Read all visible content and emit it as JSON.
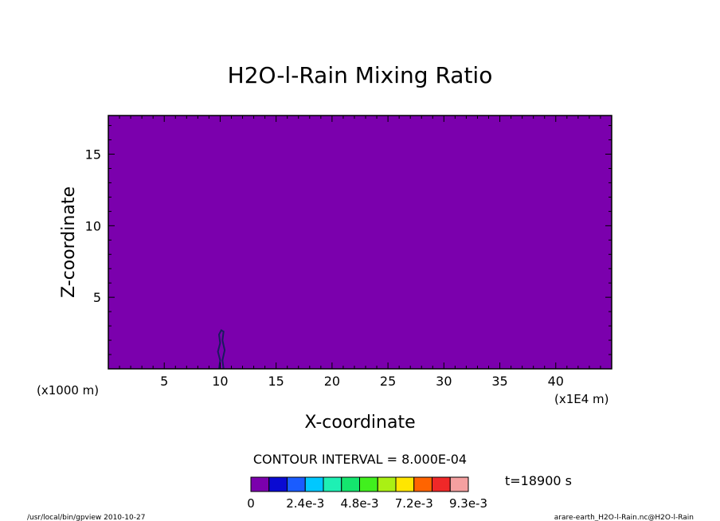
{
  "chart_data": {
    "type": "heatmap",
    "title": "H2O-l-Rain Mixing Ratio",
    "xlabel": "X-coordinate",
    "ylabel": "Z-coordinate",
    "x_unit_left": "(x1000 m)",
    "x_unit_right": "(x1E4 m)",
    "xlim": [
      0,
      45
    ],
    "ylim": [
      0,
      17.7
    ],
    "x_ticks": [
      5,
      10,
      15,
      20,
      25,
      30,
      35,
      40
    ],
    "y_ticks": [
      5,
      10,
      15
    ],
    "field_fill_color": "#7b00ad",
    "rain_contour": {
      "level": 0.0008,
      "color": "#1a1a5e",
      "points": [
        [
          9.9,
          0.0
        ],
        [
          10.0,
          0.6
        ],
        [
          9.8,
          1.2
        ],
        [
          10.0,
          1.8
        ],
        [
          9.9,
          2.4
        ],
        [
          10.1,
          2.7
        ],
        [
          10.3,
          2.6
        ],
        [
          10.2,
          2.0
        ],
        [
          10.4,
          1.3
        ],
        [
          10.2,
          0.6
        ],
        [
          10.3,
          0.0
        ]
      ]
    },
    "contour_interval_text": "CONTOUR INTERVAL = 8.000E-04",
    "time_text": "t=18900 s",
    "colorbar": {
      "colors": [
        "#7b00ad",
        "#0a0ad2",
        "#1a5cff",
        "#00c8ff",
        "#1ef0b4",
        "#14e66e",
        "#41f01e",
        "#aaf014",
        "#ffe600",
        "#ff6400",
        "#f02828",
        "#f5a0a0"
      ],
      "tick_labels": [
        "0",
        "2.4e-3",
        "4.8e-3",
        "7.2e-3",
        "9.3e-3"
      ]
    },
    "footer_left": "/usr/local/bin/gpview  2010-10-27",
    "footer_right": "arare-earth_H2O-l-Rain.nc@H2O-l-Rain"
  }
}
